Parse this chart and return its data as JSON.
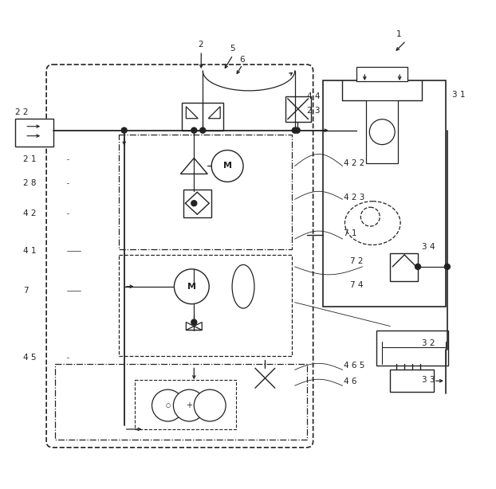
{
  "bg_color": "#ffffff",
  "line_color": "#222222",
  "figsize": [
    6.22,
    6.14
  ],
  "dpi": 100
}
